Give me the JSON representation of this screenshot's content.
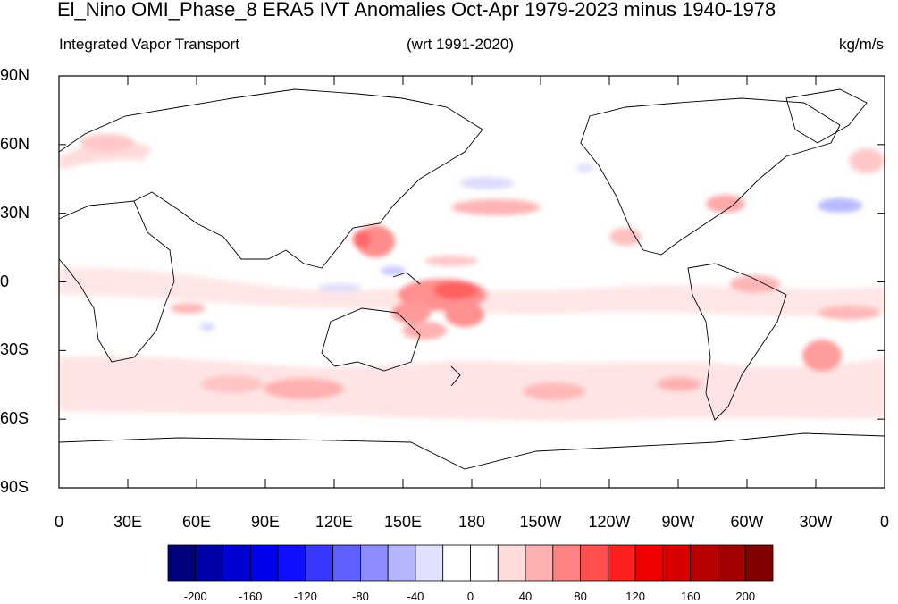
{
  "title": "El_Nino OMI_Phase_8 ERA5 IVT Anomalies Oct-Apr 1979-2023 minus 1940-1978",
  "subtitle_left": "Integrated Vapor Transport",
  "subtitle_center": "(wrt 1991-2020)",
  "subtitle_right": "kg/m/s",
  "lat_labels": [
    "90N",
    "60N",
    "30N",
    "0",
    "30S",
    "60S",
    "90S"
  ],
  "lon_labels": [
    "0",
    "30E",
    "60E",
    "90E",
    "120E",
    "150E",
    "180",
    "150W",
    "120W",
    "90W",
    "60W",
    "30W",
    "0"
  ],
  "colorbar": {
    "colors": [
      "#00007a",
      "#0000a8",
      "#0000d0",
      "#0000f0",
      "#1010ff",
      "#3838ff",
      "#6060ff",
      "#8c8cff",
      "#b4b4ff",
      "#e0e0ff",
      "#ffffff",
      "#ffffff",
      "#ffdcdc",
      "#ffb0b0",
      "#ff8282",
      "#ff5050",
      "#ff2020",
      "#f00000",
      "#d80000",
      "#b80000",
      "#a00000",
      "#800000"
    ],
    "tick_labels": [
      "-200",
      "-160",
      "-120",
      "-80",
      "-40",
      "0",
      "40",
      "80",
      "120",
      "160",
      "200"
    ]
  }
}
